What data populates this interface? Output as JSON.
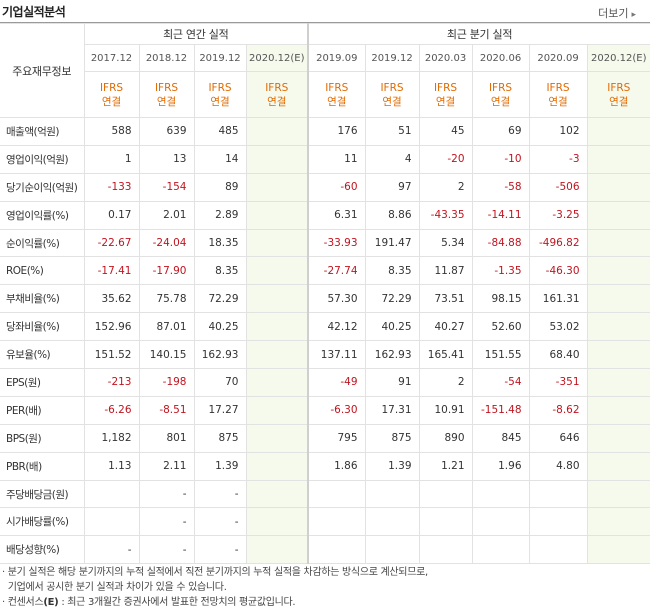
{
  "header": {
    "title": "기업실적분석",
    "more_label": "더보기",
    "more_arrow": "▸"
  },
  "table": {
    "corner_label": "주요재무정보",
    "annual_group_label": "최근 연간 실적",
    "quarter_group_label": "최근 분기 실적",
    "annual_periods": [
      "2017.12",
      "2018.12",
      "2019.12",
      "2020.12(E)"
    ],
    "quarter_periods": [
      "2019.09",
      "2019.12",
      "2020.03",
      "2020.06",
      "2020.09",
      "2020.12(E)"
    ],
    "basis_line1": "IFRS",
    "basis_line2": "연결",
    "rows": [
      {
        "label": "매출액(억원)",
        "annual": [
          "588",
          "639",
          "485",
          ""
        ],
        "quarter": [
          "176",
          "51",
          "45",
          "69",
          "102",
          ""
        ]
      },
      {
        "label": "영업이익(억원)",
        "annual": [
          "1",
          "13",
          "14",
          ""
        ],
        "quarter": [
          "11",
          "4",
          "-20",
          "-10",
          "-3",
          ""
        ]
      },
      {
        "label": "당기순이익(억원)",
        "annual": [
          "-133",
          "-154",
          "89",
          ""
        ],
        "quarter": [
          "-60",
          "97",
          "2",
          "-58",
          "-506",
          ""
        ]
      },
      {
        "label": "영업이익률(%)",
        "annual": [
          "0.17",
          "2.01",
          "2.89",
          ""
        ],
        "quarter": [
          "6.31",
          "8.86",
          "-43.35",
          "-14.11",
          "-3.25",
          ""
        ]
      },
      {
        "label": "순이익률(%)",
        "annual": [
          "-22.67",
          "-24.04",
          "18.35",
          ""
        ],
        "quarter": [
          "-33.93",
          "191.47",
          "5.34",
          "-84.88",
          "-496.82",
          ""
        ]
      },
      {
        "label": "ROE(%)",
        "annual": [
          "-17.41",
          "-17.90",
          "8.35",
          ""
        ],
        "quarter": [
          "-27.74",
          "8.35",
          "11.87",
          "-1.35",
          "-46.30",
          ""
        ]
      },
      {
        "label": "부채비율(%)",
        "annual": [
          "35.62",
          "75.78",
          "72.29",
          ""
        ],
        "quarter": [
          "57.30",
          "72.29",
          "73.51",
          "98.15",
          "161.31",
          ""
        ]
      },
      {
        "label": "당좌비율(%)",
        "annual": [
          "152.96",
          "87.01",
          "40.25",
          ""
        ],
        "quarter": [
          "42.12",
          "40.25",
          "40.27",
          "52.60",
          "53.02",
          ""
        ]
      },
      {
        "label": "유보율(%)",
        "annual": [
          "151.52",
          "140.15",
          "162.93",
          ""
        ],
        "quarter": [
          "137.11",
          "162.93",
          "165.41",
          "151.55",
          "68.40",
          ""
        ]
      },
      {
        "label": "EPS(원)",
        "annual": [
          "-213",
          "-198",
          "70",
          ""
        ],
        "quarter": [
          "-49",
          "91",
          "2",
          "-54",
          "-351",
          ""
        ]
      },
      {
        "label": "PER(배)",
        "annual": [
          "-6.26",
          "-8.51",
          "17.27",
          ""
        ],
        "quarter": [
          "-6.30",
          "17.31",
          "10.91",
          "-151.48",
          "-8.62",
          ""
        ]
      },
      {
        "label": "BPS(원)",
        "annual": [
          "1,182",
          "801",
          "875",
          ""
        ],
        "quarter": [
          "795",
          "875",
          "890",
          "845",
          "646",
          ""
        ]
      },
      {
        "label": "PBR(배)",
        "annual": [
          "1.13",
          "2.11",
          "1.39",
          ""
        ],
        "quarter": [
          "1.86",
          "1.39",
          "1.21",
          "1.96",
          "4.80",
          ""
        ]
      },
      {
        "label": "주당배당금(원)",
        "annual": [
          "",
          "-",
          "-",
          ""
        ],
        "quarter": [
          "",
          "",
          "",
          "",
          "",
          ""
        ]
      },
      {
        "label": "시가배당률(%)",
        "annual": [
          "",
          "-",
          "-",
          ""
        ],
        "quarter": [
          "",
          "",
          "",
          "",
          "",
          ""
        ]
      },
      {
        "label": "배당성향(%)",
        "annual": [
          "-",
          "-",
          "-",
          ""
        ],
        "quarter": [
          "",
          "",
          "",
          "",
          "",
          ""
        ]
      }
    ]
  },
  "notes": {
    "line1": "· 분기 실적은 해당 분기까지의 누적 실적에서 직전 분기까지의 누적 실적을 차감하는 방식으로 계산되므로,",
    "line2": "  기업에서 공시한 분기 실적과 차이가 있을 수 있습니다.",
    "line3_prefix": "· 컨센서스",
    "line3_mark": "(E)",
    "line3_suffix": " : 최근 3개월간 증권사에서 발표한 전망치의 평균값입니다."
  },
  "colors": {
    "basis_orange": "#e06a00",
    "negative_red": "#c0141f",
    "estimate_bg": "#f5faed"
  }
}
